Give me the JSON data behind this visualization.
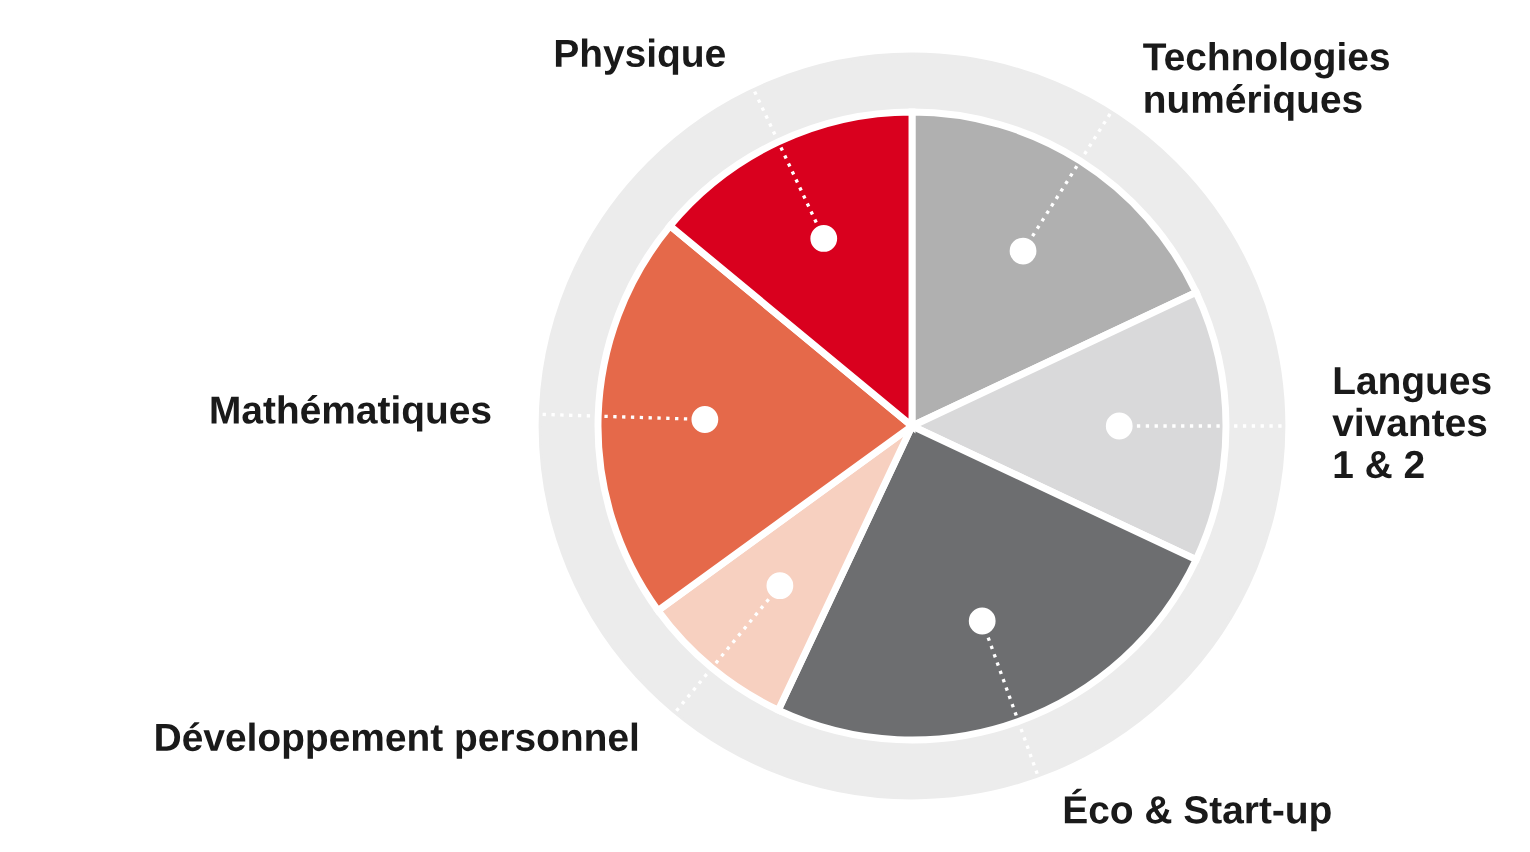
{
  "chart_data": {
    "type": "pie",
    "categories": [
      "Technologies\nnumériques",
      "Langues\nvivantes\n1 & 2",
      "Éco & Start-up",
      "Développement personnel",
      "Mathématiques",
      "Physique"
    ],
    "values": [
      18,
      14,
      25,
      8,
      21,
      14
    ],
    "colors": [
      "#b0b0b0",
      "#d9d9da",
      "#6d6e70",
      "#f7d0c0",
      "#e5694a",
      "#d9001e"
    ],
    "legend": false
  }
}
